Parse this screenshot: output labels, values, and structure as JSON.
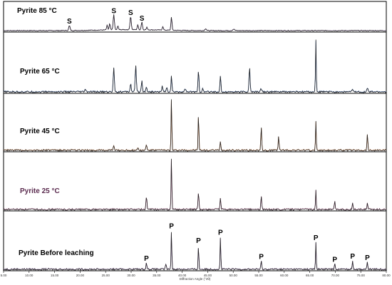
{
  "chart_data": {
    "type": "line",
    "xlabel": "Diffraction Angle (°2θ)",
    "xlim": [
      5,
      80
    ],
    "x_ticks": [
      "5.00",
      "10.00",
      "15.00",
      "20.00",
      "25.00",
      "30.00",
      "35.00",
      "40.00",
      "45.00",
      "50.00",
      "55.00",
      "60.00",
      "65.00",
      "70.00",
      "75.00",
      "80.00"
    ],
    "panels": [
      {
        "label": "Pyrite 85 °C",
        "label_color": "#000000",
        "overlay_color": "#8a5aa8",
        "peaks": [
          {
            "x": 17.9,
            "h": 0.2,
            "w": 0.18
          },
          {
            "x": 25.3,
            "h": 0.18,
            "w": 0.15
          },
          {
            "x": 25.8,
            "h": 0.25,
            "w": 0.15
          },
          {
            "x": 26.6,
            "h": 0.62,
            "w": 0.17
          },
          {
            "x": 27.4,
            "h": 0.15,
            "w": 0.15
          },
          {
            "x": 29.9,
            "h": 0.55,
            "w": 0.17
          },
          {
            "x": 31.3,
            "h": 0.2,
            "w": 0.15
          },
          {
            "x": 32.1,
            "h": 0.32,
            "w": 0.16
          },
          {
            "x": 33.1,
            "h": 0.1,
            "w": 0.15
          },
          {
            "x": 36.2,
            "h": 0.15,
            "w": 0.15
          },
          {
            "x": 37.9,
            "h": 0.55,
            "w": 0.14
          },
          {
            "x": 44.6,
            "h": 0.08,
            "w": 0.2
          },
          {
            "x": 50.1,
            "h": 0.06,
            "w": 0.25
          }
        ],
        "annotations": [
          {
            "text": "S",
            "x": 17.9
          },
          {
            "text": "S",
            "x": 26.6
          },
          {
            "text": "S",
            "x": 29.9
          },
          {
            "text": "S",
            "x": 32.1
          }
        ]
      },
      {
        "label": "Pyrite 65 °C",
        "label_color": "#000000",
        "overlay_color": "#3a6ec8",
        "peaks": [
          {
            "x": 21.0,
            "h": 0.05,
            "w": 0.15
          },
          {
            "x": 26.6,
            "h": 0.45,
            "w": 0.15
          },
          {
            "x": 29.9,
            "h": 0.15,
            "w": 0.15
          },
          {
            "x": 30.9,
            "h": 0.48,
            "w": 0.15
          },
          {
            "x": 32.1,
            "h": 0.2,
            "w": 0.15
          },
          {
            "x": 33.0,
            "h": 0.1,
            "w": 0.15
          },
          {
            "x": 36.1,
            "h": 0.1,
            "w": 0.15
          },
          {
            "x": 37.0,
            "h": 0.08,
            "w": 0.15
          },
          {
            "x": 37.9,
            "h": 0.3,
            "w": 0.12
          },
          {
            "x": 40.6,
            "h": 0.06,
            "w": 0.15
          },
          {
            "x": 43.2,
            "h": 0.4,
            "w": 0.13
          },
          {
            "x": 44.0,
            "h": 0.05,
            "w": 0.15
          },
          {
            "x": 47.5,
            "h": 0.28,
            "w": 0.13
          },
          {
            "x": 53.2,
            "h": 0.45,
            "w": 0.14
          },
          {
            "x": 55.5,
            "h": 0.06,
            "w": 0.18
          },
          {
            "x": 66.2,
            "h": 0.95,
            "w": 0.1
          },
          {
            "x": 73.4,
            "h": 0.05,
            "w": 0.15
          },
          {
            "x": 76.3,
            "h": 0.07,
            "w": 0.15
          }
        ],
        "annotations": []
      },
      {
        "label": "Pyrite 45 °C",
        "label_color": "#000000",
        "overlay_color": "#e07830",
        "peaks": [
          {
            "x": 26.6,
            "h": 0.08,
            "w": 0.15
          },
          {
            "x": 31.3,
            "h": 0.05,
            "w": 0.15
          },
          {
            "x": 33.0,
            "h": 0.1,
            "w": 0.15
          },
          {
            "x": 37.9,
            "h": 1.0,
            "w": 0.1
          },
          {
            "x": 43.2,
            "h": 0.75,
            "w": 0.1
          },
          {
            "x": 47.5,
            "h": 0.18,
            "w": 0.12
          },
          {
            "x": 55.5,
            "h": 0.45,
            "w": 0.12
          },
          {
            "x": 58.9,
            "h": 0.28,
            "w": 0.12
          },
          {
            "x": 66.2,
            "h": 0.55,
            "w": 0.1
          },
          {
            "x": 76.3,
            "h": 0.3,
            "w": 0.12
          }
        ],
        "annotations": []
      },
      {
        "label": "Pyrite 25 °C",
        "label_color": "#5a2a4e",
        "overlay_color": "#e070b0",
        "peaks": [
          {
            "x": 33.0,
            "h": 0.25,
            "w": 0.13
          },
          {
            "x": 37.9,
            "h": 1.0,
            "w": 0.1
          },
          {
            "x": 43.2,
            "h": 0.35,
            "w": 0.12
          },
          {
            "x": 47.5,
            "h": 0.22,
            "w": 0.12
          },
          {
            "x": 55.5,
            "h": 0.25,
            "w": 0.12
          },
          {
            "x": 66.2,
            "h": 0.38,
            "w": 0.1
          },
          {
            "x": 69.9,
            "h": 0.15,
            "w": 0.12
          },
          {
            "x": 73.4,
            "h": 0.13,
            "w": 0.12
          },
          {
            "x": 76.3,
            "h": 0.13,
            "w": 0.12
          }
        ],
        "annotations": []
      },
      {
        "label": "Pyrite Before leaching",
        "label_color": "#000000",
        "overlay_color": "#8a5aa8",
        "peaks": [
          {
            "x": 33.0,
            "h": 0.12,
            "w": 0.13
          },
          {
            "x": 36.8,
            "h": 0.1,
            "w": 0.13
          },
          {
            "x": 37.9,
            "h": 0.72,
            "w": 0.1
          },
          {
            "x": 43.2,
            "h": 0.45,
            "w": 0.1
          },
          {
            "x": 47.5,
            "h": 0.6,
            "w": 0.1
          },
          {
            "x": 55.5,
            "h": 0.15,
            "w": 0.12
          },
          {
            "x": 66.2,
            "h": 0.5,
            "w": 0.1
          },
          {
            "x": 69.9,
            "h": 0.1,
            "w": 0.12
          },
          {
            "x": 73.4,
            "h": 0.16,
            "w": 0.12
          },
          {
            "x": 76.3,
            "h": 0.13,
            "w": 0.12
          }
        ],
        "annotations": [
          {
            "text": "P",
            "x": 33.0
          },
          {
            "text": "P",
            "x": 37.9
          },
          {
            "text": "P",
            "x": 43.2
          },
          {
            "text": "P",
            "x": 47.5
          },
          {
            "text": "P",
            "x": 55.5
          },
          {
            "text": "P",
            "x": 66.2
          },
          {
            "text": "P",
            "x": 69.9
          },
          {
            "text": "P",
            "x": 73.4
          },
          {
            "text": "P",
            "x": 76.3
          }
        ]
      }
    ]
  }
}
